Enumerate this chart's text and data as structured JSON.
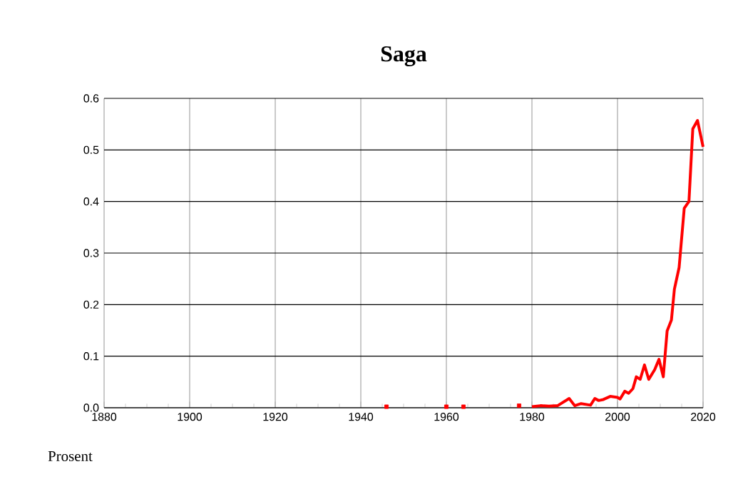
{
  "chart_data": {
    "type": "line",
    "title": "Saga",
    "ylabel": "Prosent",
    "x": [
      1980,
      1982,
      1984,
      1986,
      1988.7,
      1990,
      1991.5,
      1993.7,
      1994.7,
      1995.6,
      1996.7,
      1998.3,
      2000,
      2000.6,
      2001.7,
      2002.6,
      2003.6,
      2004.4,
      2005.3,
      2006.3,
      2007.3,
      2008.7,
      2009.7,
      2010.7,
      2011.6,
      2012.6,
      2013.3,
      2014.4,
      2015.6,
      2016.7,
      2017.6,
      2018.7,
      2020
    ],
    "series": [
      {
        "color": "#ff0000",
        "values": [
          0.002,
          0.004,
          0.003,
          0.004,
          0.018,
          0.004,
          0.008,
          0.005,
          0.018,
          0.014,
          0.016,
          0.022,
          0.02,
          0.017,
          0.032,
          0.028,
          0.037,
          0.06,
          0.055,
          0.083,
          0.055,
          0.074,
          0.094,
          0.06,
          0.149,
          0.17,
          0.23,
          0.272,
          0.387,
          0.4,
          0.541,
          0.557,
          0.506
        ]
      },
      {
        "type": "scatter",
        "marker": "square",
        "color": "#ff0000",
        "x": [
          1946,
          1960,
          1964,
          1977
        ],
        "values": [
          0.002,
          0.002,
          0.002,
          0.004
        ]
      }
    ],
    "xlim": [
      1880,
      2020
    ],
    "xticks": [
      1880,
      1900,
      1920,
      1940,
      1960,
      1980,
      2000,
      2020
    ],
    "ylim": [
      0,
      0.6
    ],
    "yticks": [
      {
        "value": 0,
        "label": "0.0"
      },
      0.1,
      0.2,
      0.3,
      0.4,
      0.5,
      0.6
    ],
    "grid": true,
    "line_style": "solid"
  }
}
